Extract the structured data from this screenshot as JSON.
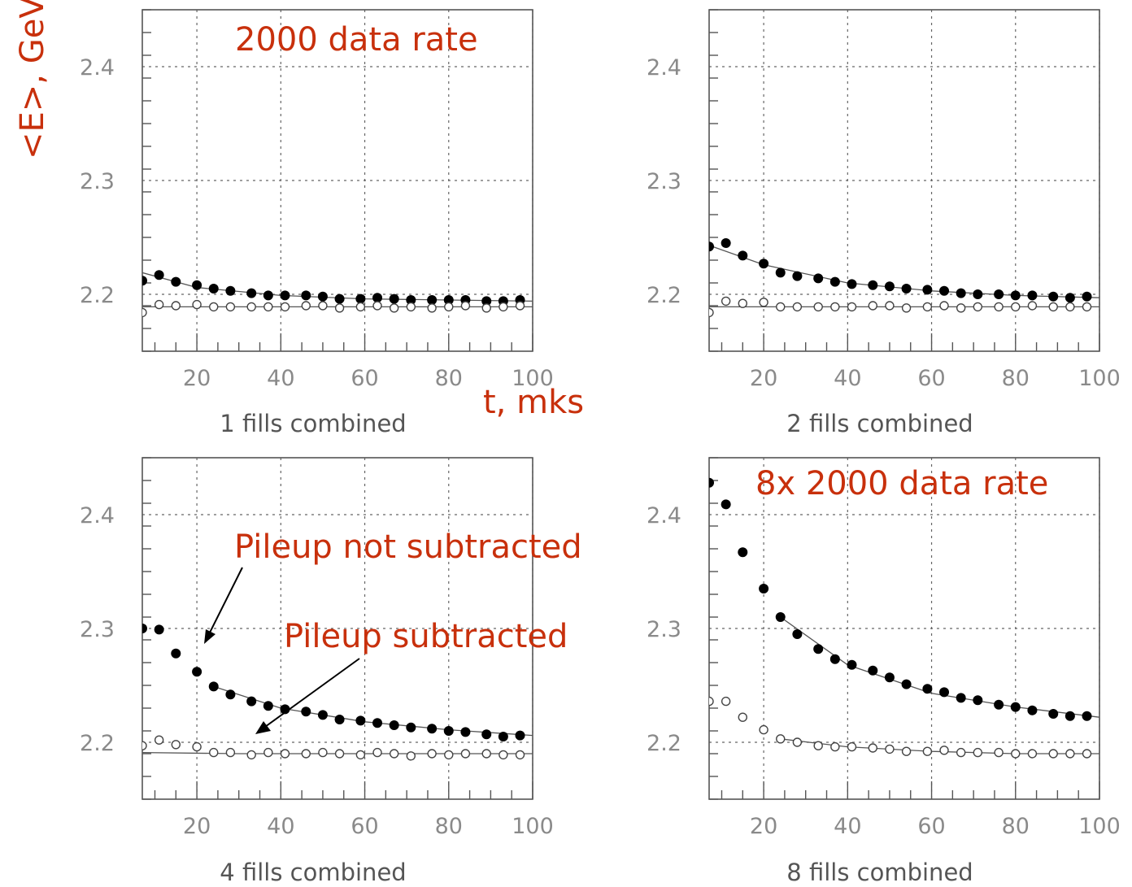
{
  "annotations": {
    "ylabel": "<E>, GeV",
    "xlabel": "t, mks",
    "rate_top": "2000 data rate",
    "rate_bottom": "8x 2000 data rate",
    "pileup_not": "Pileup not subtracted",
    "pileup_sub": "Pileup subtracted"
  },
  "colors": {
    "annotation": "#c8300c",
    "axes": "#555555",
    "tick_labels": "#8a8a8a",
    "filled_points": "#000000",
    "open_points": "#ffffff"
  },
  "chart_data": [
    {
      "type": "scatter",
      "title": "1 fills combined",
      "xlim": [
        7,
        100
      ],
      "ylim": [
        2.15,
        2.45
      ],
      "x_ticks": [
        20,
        40,
        60,
        80,
        100
      ],
      "y_ticks": [
        2.2,
        2.3,
        2.4
      ],
      "grid": true,
      "series": [
        {
          "style": "filled",
          "x": [
            7,
            11,
            15,
            20,
            24,
            28,
            33,
            37,
            41,
            46,
            50,
            54,
            59,
            63,
            67,
            71,
            76,
            80,
            84,
            89,
            93,
            97
          ],
          "values": [
            2.212,
            2.217,
            2.211,
            2.208,
            2.205,
            2.203,
            2.201,
            2.199,
            2.199,
            2.199,
            2.198,
            2.196,
            2.196,
            2.197,
            2.196,
            2.195,
            2.195,
            2.195,
            2.195,
            2.194,
            2.194,
            2.195
          ]
        },
        {
          "style": "open",
          "x": [
            7,
            11,
            15,
            20,
            24,
            28,
            33,
            37,
            41,
            46,
            50,
            54,
            59,
            63,
            67,
            71,
            76,
            80,
            84,
            89,
            93,
            97
          ],
          "values": [
            2.184,
            2.191,
            2.19,
            2.191,
            2.189,
            2.189,
            2.189,
            2.189,
            2.189,
            2.19,
            2.19,
            2.188,
            2.189,
            2.19,
            2.188,
            2.189,
            2.188,
            2.189,
            2.19,
            2.188,
            2.189,
            2.19
          ]
        }
      ],
      "fits": [
        {
          "x": [
            7,
            20,
            40,
            60,
            80,
            100
          ],
          "values": [
            2.219,
            2.206,
            2.199,
            2.196,
            2.195,
            2.194
          ]
        },
        {
          "x": [
            7,
            30,
            60,
            100
          ],
          "values": [
            2.189,
            2.189,
            2.189,
            2.189
          ]
        }
      ]
    },
    {
      "type": "scatter",
      "title": "2 fills combined",
      "xlim": [
        7,
        100
      ],
      "ylim": [
        2.15,
        2.45
      ],
      "x_ticks": [
        20,
        40,
        60,
        80,
        100
      ],
      "y_ticks": [
        2.2,
        2.3,
        2.4
      ],
      "grid": true,
      "series": [
        {
          "style": "filled",
          "x": [
            7,
            11,
            15,
            20,
            24,
            28,
            33,
            37,
            41,
            46,
            50,
            54,
            59,
            63,
            67,
            71,
            76,
            80,
            84,
            89,
            93,
            97
          ],
          "values": [
            2.242,
            2.245,
            2.234,
            2.227,
            2.219,
            2.216,
            2.214,
            2.211,
            2.209,
            2.208,
            2.207,
            2.205,
            2.204,
            2.203,
            2.201,
            2.2,
            2.2,
            2.199,
            2.199,
            2.198,
            2.197,
            2.198
          ]
        },
        {
          "style": "open",
          "x": [
            7,
            11,
            15,
            20,
            24,
            28,
            33,
            37,
            41,
            46,
            50,
            54,
            59,
            63,
            67,
            71,
            76,
            80,
            84,
            89,
            93,
            97
          ],
          "values": [
            2.184,
            2.194,
            2.192,
            2.193,
            2.189,
            2.189,
            2.189,
            2.189,
            2.189,
            2.19,
            2.19,
            2.188,
            2.189,
            2.19,
            2.188,
            2.189,
            2.189,
            2.189,
            2.19,
            2.189,
            2.189,
            2.189
          ]
        }
      ],
      "fits": [
        {
          "x": [
            7,
            20,
            40,
            60,
            80,
            100
          ],
          "values": [
            2.243,
            2.226,
            2.21,
            2.203,
            2.199,
            2.197
          ]
        },
        {
          "x": [
            7,
            30,
            60,
            100
          ],
          "values": [
            2.189,
            2.189,
            2.189,
            2.189
          ]
        }
      ]
    },
    {
      "type": "scatter",
      "title": "4 fills combined",
      "xlim": [
        7,
        100
      ],
      "ylim": [
        2.15,
        2.45
      ],
      "x_ticks": [
        20,
        40,
        60,
        80,
        100
      ],
      "y_ticks": [
        2.2,
        2.3,
        2.4
      ],
      "grid": true,
      "series": [
        {
          "style": "filled",
          "x": [
            7,
            11,
            15,
            20,
            24,
            28,
            33,
            37,
            41,
            46,
            50,
            54,
            59,
            63,
            67,
            71,
            76,
            80,
            84,
            89,
            93,
            97
          ],
          "values": [
            2.3,
            2.299,
            2.278,
            2.262,
            2.249,
            2.242,
            2.236,
            2.232,
            2.229,
            2.227,
            2.224,
            2.22,
            2.219,
            2.217,
            2.215,
            2.213,
            2.212,
            2.21,
            2.209,
            2.207,
            2.205,
            2.206
          ]
        },
        {
          "style": "open",
          "x": [
            7,
            11,
            15,
            20,
            24,
            28,
            33,
            37,
            41,
            46,
            50,
            54,
            59,
            63,
            67,
            71,
            76,
            80,
            84,
            89,
            93,
            97
          ],
          "values": [
            2.197,
            2.202,
            2.198,
            2.196,
            2.191,
            2.191,
            2.189,
            2.191,
            2.19,
            2.19,
            2.191,
            2.19,
            2.189,
            2.191,
            2.19,
            2.188,
            2.19,
            2.189,
            2.19,
            2.19,
            2.189,
            2.189
          ]
        }
      ],
      "fits": [
        {
          "x": [
            24,
            40,
            60,
            80,
            100
          ],
          "values": [
            2.249,
            2.23,
            2.218,
            2.211,
            2.206
          ]
        },
        {
          "x": [
            7,
            30,
            60,
            100
          ],
          "values": [
            2.191,
            2.19,
            2.19,
            2.19
          ]
        }
      ]
    },
    {
      "type": "scatter",
      "title": "8 fills combined",
      "xlim": [
        7,
        100
      ],
      "ylim": [
        2.15,
        2.45
      ],
      "x_ticks": [
        20,
        40,
        60,
        80,
        100
      ],
      "y_ticks": [
        2.2,
        2.3,
        2.4
      ],
      "grid": true,
      "series": [
        {
          "style": "filled",
          "x": [
            7,
            11,
            15,
            20,
            24,
            28,
            33,
            37,
            41,
            46,
            50,
            54,
            59,
            63,
            67,
            71,
            76,
            80,
            84,
            89,
            93,
            97
          ],
          "values": [
            2.428,
            2.409,
            2.367,
            2.335,
            2.31,
            2.295,
            2.282,
            2.273,
            2.268,
            2.263,
            2.257,
            2.251,
            2.247,
            2.244,
            2.239,
            2.237,
            2.233,
            2.231,
            2.228,
            2.225,
            2.223,
            2.223
          ]
        },
        {
          "style": "open",
          "x": [
            7,
            11,
            15,
            20,
            24,
            28,
            33,
            37,
            41,
            46,
            50,
            54,
            59,
            63,
            67,
            71,
            76,
            80,
            84,
            89,
            93,
            97
          ],
          "values": [
            2.236,
            2.236,
            2.222,
            2.211,
            2.203,
            2.2,
            2.197,
            2.196,
            2.196,
            2.195,
            2.194,
            2.192,
            2.192,
            2.193,
            2.191,
            2.191,
            2.191,
            2.19,
            2.19,
            2.19,
            2.19,
            2.19
          ]
        }
      ],
      "fits": [
        {
          "x": [
            24,
            40,
            60,
            80,
            100
          ],
          "values": [
            2.31,
            2.268,
            2.243,
            2.231,
            2.222
          ]
        },
        {
          "x": [
            24,
            40,
            60,
            80,
            100
          ],
          "values": [
            2.203,
            2.196,
            2.192,
            2.19,
            2.19
          ]
        }
      ]
    }
  ]
}
